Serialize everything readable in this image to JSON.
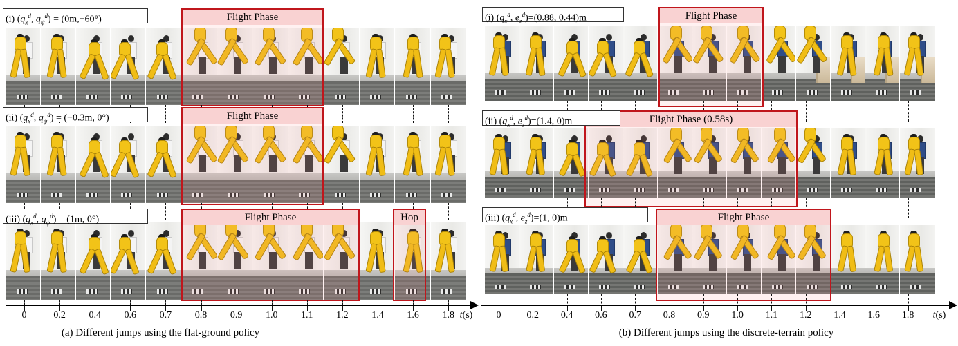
{
  "panels": [
    {
      "id": "a",
      "caption": "(a) Different jumps using the flat-ground policy",
      "axis_unit": "t(s)",
      "ticks": [
        "0",
        "0.2",
        "0.4",
        "0.6",
        "0.7",
        "0.8",
        "0.9",
        "1.0",
        "1.1",
        "1.2",
        "1.4",
        "1.6",
        "1.8"
      ],
      "rows": [
        {
          "label_html": "(i) (<i>q</i><sub><i>x</i></sub><sup><i>d</i></sup>, <i>q</i><sub><i>ψ</i></sub><sup><i>d</i></sup>) = (0m,−60°)",
          "highlights": [
            {
              "label": "Flight Phase"
            }
          ]
        },
        {
          "label_html": "(ii) (<i>q</i><sub><i>x</i></sub><sup><i>d</i></sup>, <i>q</i><sub><i>ψ</i></sub><sup><i>d</i></sup>) = (−0.3m, 0°)",
          "highlights": [
            {
              "label": "Flight Phase"
            }
          ]
        },
        {
          "label_html": "(iii) (<i>q</i><sub><i>x</i></sub><sup><i>d</i></sup>, <i>q</i><sub><i>ψ</i></sub><sup><i>d</i></sup>) = (1m, 0°)",
          "highlights": [
            {
              "label": "Flight Phase"
            },
            {
              "label": "Hop"
            }
          ]
        }
      ]
    },
    {
      "id": "b",
      "caption": "(b) Different jumps using the discrete-terrain policy",
      "axis_unit": "t(s)",
      "ticks": [
        "0",
        "0.2",
        "0.4",
        "0.6",
        "0.7",
        "0.8",
        "0.9",
        "1.0",
        "1.1",
        "1.2",
        "1.4",
        "1.6",
        "1.8"
      ],
      "rows": [
        {
          "label_html": "(i) (<i>q</i><sub><i>x</i></sub><sup><i>d</i></sup>, <i>e</i><sub><i>z</i></sub><sup><i>d</i></sup>)=(0.88, 0.44)m",
          "highlights": [
            {
              "label": "Flight Phase"
            }
          ]
        },
        {
          "label_html": "(ii) (<i>q</i><sub><i>x</i></sub><sup><i>d</i></sup>, <i>e</i><sub><i>z</i></sub><sup><i>d</i></sup>)=(1.4,  0)m",
          "highlights": [
            {
              "label": "Flight Phase (0.58s)"
            }
          ]
        },
        {
          "label_html": "(iii) (<i>q</i><sub><i>x</i></sub><sup><i>d</i></sup>, <i>e</i><sub><i>z</i></sub><sup><i>d</i></sup>)=(1, 0)m",
          "highlights": [
            {
              "label": "Flight Phase"
            }
          ]
        }
      ]
    }
  ]
}
